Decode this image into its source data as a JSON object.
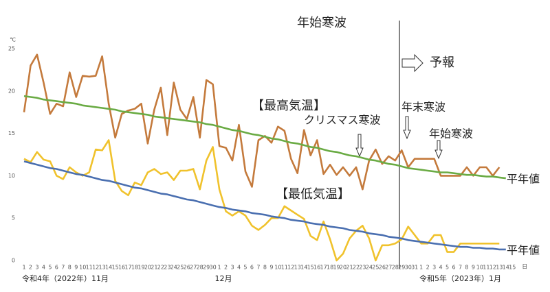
{
  "chart_data": {
    "type": "line",
    "y_unit": "℃",
    "x_unit": "日",
    "x_group_labels": [
      "令和4年（2022年）11月",
      "12月",
      "令和5年（2023年）1月"
    ],
    "annotations": [
      "年始寒波",
      "予報",
      "クリスマス寒波",
      "年末寒波",
      "年始寒波"
    ],
    "categories": [
      "1",
      "2",
      "3",
      "4",
      "5",
      "6",
      "7",
      "8",
      "9",
      "10",
      "11",
      "12",
      "13",
      "14",
      "15",
      "16",
      "17",
      "18",
      "19",
      "20",
      "21",
      "22",
      "23",
      "24",
      "25",
      "26",
      "27",
      "28",
      "29",
      "30",
      "1",
      "2",
      "3",
      "4",
      "5",
      "6",
      "7",
      "8",
      "9",
      "10",
      "11",
      "12",
      "13",
      "14",
      "15",
      "16",
      "17",
      "18",
      "19",
      "20",
      "21",
      "22",
      "23",
      "24",
      "25",
      "26",
      "27",
      "28",
      "29",
      "30",
      "31",
      "1",
      "2",
      "3",
      "4",
      "5",
      "6",
      "7",
      "8",
      "9",
      "10",
      "11",
      "12",
      "13",
      "14",
      "15"
    ],
    "ylim": [
      0,
      25
    ],
    "yticks": [
      0,
      5,
      10,
      15,
      20,
      25
    ],
    "series": [
      {
        "name": "【最高気温】",
        "color": "#c47a3c",
        "values": [
          17.5,
          23,
          24.3,
          21,
          17.3,
          18.5,
          18.2,
          22.2,
          19.3,
          21.8,
          21.7,
          21.8,
          24.1,
          18.5,
          14.5,
          17.3,
          17.7,
          17.9,
          18.5,
          13.8,
          17.8,
          20.4,
          14.8,
          21,
          17.8,
          16.7,
          19.3,
          14.5,
          21.3,
          20.8,
          13.5,
          13.3,
          11.8,
          16,
          10.5,
          8.7,
          14.2,
          14.7,
          13.9,
          15.8,
          15.3,
          12,
          10.3,
          15.4,
          12.4,
          14.2,
          10.2,
          11.3,
          10.1,
          11,
          10,
          11,
          8.4,
          11.8,
          13.1,
          11.4,
          12.3,
          11.8,
          13,
          11,
          12,
          12,
          12,
          12,
          10,
          10,
          10,
          10,
          11,
          10,
          11,
          11,
          10,
          11,
          null,
          null
        ]
      },
      {
        "name": "平年値",
        "color": "#6aab44",
        "values": [
          19.4,
          19.3,
          19.2,
          19.0,
          18.9,
          18.8,
          18.7,
          18.6,
          18.5,
          18.3,
          18.2,
          18.1,
          18.0,
          17.9,
          17.8,
          17.6,
          17.5,
          17.4,
          17.3,
          17.2,
          17.0,
          16.9,
          16.8,
          16.7,
          16.6,
          16.5,
          16.4,
          16.3,
          16.1,
          16.0,
          15.8,
          15.6,
          15.4,
          15.3,
          15.1,
          14.9,
          14.8,
          14.6,
          14.4,
          14.3,
          14.1,
          13.9,
          13.8,
          13.6,
          13.4,
          13.3,
          13.1,
          12.9,
          12.8,
          12.6,
          12.4,
          12.3,
          12.1,
          11.9,
          11.8,
          11.6,
          11.4,
          11.3,
          11.1,
          10.9,
          10.8,
          10.7,
          10.6,
          10.5,
          10.4,
          10.4,
          10.3,
          10.2,
          10.1,
          10.1,
          10.0,
          9.9,
          9.9,
          9.8,
          9.7,
          null
        ]
      },
      {
        "name": "【最低気温】",
        "color": "#f0c22c",
        "values": [
          12,
          11.6,
          12.8,
          11.9,
          11.7,
          10,
          9.6,
          11,
          10.4,
          10,
          10.4,
          13.1,
          13,
          14.2,
          9.4,
          8.2,
          7.7,
          9.2,
          8.9,
          10.4,
          10.8,
          10.2,
          10.4,
          9.5,
          10.6,
          10.6,
          10.8,
          8.4,
          11.8,
          13.4,
          8.4,
          5.8,
          5.3,
          5.8,
          5.3,
          4.1,
          3.6,
          4.2,
          5,
          5,
          6.4,
          5.9,
          5.4,
          4.9,
          2.9,
          2.4,
          4.6,
          2.5,
          0,
          0.8,
          2.6,
          3.5,
          4.1,
          2.6,
          0,
          1.8,
          1.8,
          2,
          2.5,
          4,
          3,
          2,
          2,
          3,
          3,
          1,
          1,
          2,
          2,
          2,
          2,
          2,
          2,
          2,
          null,
          null
        ]
      },
      {
        "name": "平年値",
        "color": "#4a6fb0",
        "values": [
          11.7,
          11.5,
          11.3,
          11.1,
          10.9,
          10.8,
          10.6,
          10.4,
          10.2,
          10.1,
          9.9,
          9.7,
          9.5,
          9.4,
          9.2,
          9.0,
          8.8,
          8.6,
          8.5,
          8.3,
          8.1,
          7.9,
          7.8,
          7.6,
          7.4,
          7.2,
          7.1,
          6.9,
          6.7,
          6.5,
          6.3,
          6.2,
          6.0,
          5.9,
          5.8,
          5.6,
          5.5,
          5.4,
          5.2,
          5.1,
          5.0,
          4.8,
          4.7,
          4.6,
          4.4,
          4.3,
          4.2,
          4.0,
          3.9,
          3.8,
          3.6,
          3.5,
          3.4,
          3.2,
          3.1,
          3.0,
          2.8,
          2.7,
          2.6,
          2.4,
          2.3,
          2.2,
          2.1,
          2.0,
          1.9,
          1.8,
          1.7,
          1.6,
          1.6,
          1.5,
          1.5,
          1.4,
          1.4,
          1.3,
          1.3,
          null
        ]
      }
    ]
  }
}
